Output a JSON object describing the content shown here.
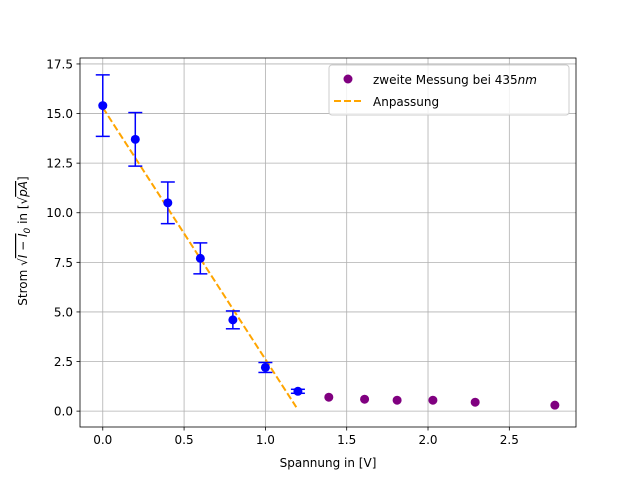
{
  "chart_data": {
    "type": "scatter",
    "title": "",
    "xlabel": "Spannung in [V]",
    "ylabel": {
      "prefix": "Strom ",
      "root_term": "I − I",
      "root_sub": "0",
      "middle": " in [",
      "unit_root": "pA",
      "suffix": "]"
    },
    "xlim": [
      -0.14,
      2.91
    ],
    "ylim": [
      -0.8,
      17.8
    ],
    "xticks": [
      0.0,
      0.5,
      1.0,
      1.5,
      2.0,
      2.5
    ],
    "xtick_labels": [
      "0.0",
      "0.5",
      "1.0",
      "1.5",
      "2.0",
      "2.5"
    ],
    "yticks": [
      0.0,
      2.5,
      5.0,
      7.5,
      10.0,
      12.5,
      15.0,
      17.5
    ],
    "ytick_labels": [
      "0.0",
      "2.5",
      "5.0",
      "7.5",
      "10.0",
      "12.5",
      "15.0",
      "17.5"
    ],
    "grid": true,
    "legend_position": "top-right",
    "series": [
      {
        "kind": "errorbar",
        "color": "#0000ff",
        "x": [
          0.0,
          0.2,
          0.4,
          0.6,
          0.8,
          1.0,
          1.2
        ],
        "y": [
          15.4,
          13.7,
          10.5,
          7.7,
          4.6,
          2.2,
          1.0
        ],
        "yerr": [
          1.55,
          1.35,
          1.05,
          0.78,
          0.45,
          0.25,
          0.1
        ]
      },
      {
        "kind": "scatter",
        "name": "zweite Messung bei 435",
        "name_unit": "nm",
        "color": "#800080",
        "x": [
          1.39,
          1.61,
          1.81,
          2.03,
          2.29,
          2.78
        ],
        "y": [
          0.7,
          0.6,
          0.55,
          0.55,
          0.45,
          0.3
        ]
      },
      {
        "kind": "line",
        "name": "Anpassung",
        "color": "#ffa500",
        "dashed": true,
        "x": [
          0.0,
          1.19
        ],
        "y": [
          15.3,
          0.2
        ]
      }
    ]
  }
}
